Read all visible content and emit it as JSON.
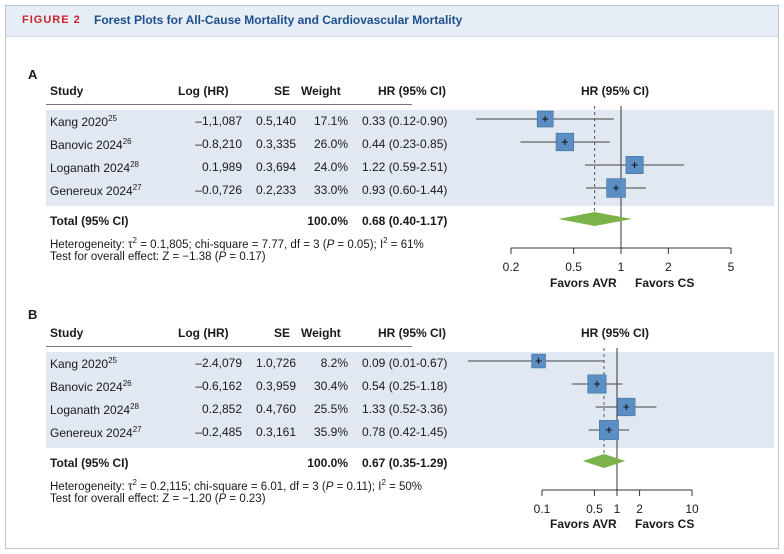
{
  "figure": {
    "number_label": "FIGURE 2",
    "title": "Forest Plots for All-Cause Mortality and Cardiovascular Mortality"
  },
  "columns": {
    "study": "Study",
    "loghr": "Log (HR)",
    "se": "SE",
    "weight": "Weight",
    "hr": "HR (95% CI)",
    "plot": "HR (95% CI)"
  },
  "panels": [
    {
      "label": "A",
      "total": {
        "label": "Total (95% CI)",
        "weight": "100.0%",
        "hr": "0.68 (0.40-1.17)"
      },
      "heterogeneity": {
        "pre": "Heterogeneity: τ",
        "exp": "2",
        "mid": " = 0.1,805; chi-square = 7.77, df = 3 (",
        "p": "P",
        "mid2": " = 0.05); I",
        "exp2": "2",
        "post": " = 61%"
      },
      "overall": {
        "pre": "Test for overall effect: Z = −1.38 (",
        "p": "P",
        "post": " = 0.17)"
      },
      "favors_left": "Favors AVR",
      "favors_right": "Favors CS",
      "rows": [
        {
          "name": "Kang 2020",
          "ref": "25",
          "loghr": "–1,1,087",
          "se": "0.5,140",
          "weight": "17.1%",
          "hr": "0.33 (0.12-0.90)"
        },
        {
          "name": "Banovic 2024",
          "ref": "26",
          "loghr": "–0.8,210",
          "se": "0.3,335",
          "weight": "26.0%",
          "hr": "0.44 (0.23-0.85)"
        },
        {
          "name": "Loganath 2024",
          "ref": "28",
          "loghr": "0.1,989",
          "se": "0.3,694",
          "weight": "24.0%",
          "hr": "1.22 (0.59-2.51)"
        },
        {
          "name": "Genereux 2024",
          "ref": "27",
          "loghr": "–0.0,726",
          "se": "0.2,233",
          "weight": "33.0%",
          "hr": "0.93 (0.60-1.44)"
        }
      ]
    },
    {
      "label": "B",
      "total": {
        "label": "Total (95% CI)",
        "weight": "100.0%",
        "hr": "0.67 (0.35-1.29)"
      },
      "heterogeneity": {
        "pre": "Heterogeneity: τ",
        "exp": "2",
        "mid": " = 0.2,115; chi-square = 6.01, df = 3 (",
        "p": "P",
        "mid2": " = 0.11); I",
        "exp2": "2",
        "post": " = 50%"
      },
      "overall": {
        "pre": "Test for overall effect: Z = −1.20 (",
        "p": "P",
        "post": " = 0.23)"
      },
      "favors_left": "Favors AVR",
      "favors_right": "Favors CS",
      "rows": [
        {
          "name": "Kang 2020",
          "ref": "25",
          "loghr": "–2.4,079",
          "se": "1.0,726",
          "weight": "8.2%",
          "hr": "0.09 (0.01-0.67)"
        },
        {
          "name": "Banovic 2024",
          "ref": "26",
          "loghr": "–0.6,162",
          "se": "0.3,959",
          "weight": "30.4%",
          "hr": "0.54 (0.25-1.18)"
        },
        {
          "name": "Loganath 2024",
          "ref": "28",
          "loghr": "0.2,852",
          "se": "0.4,760",
          "weight": "25.5%",
          "hr": "1.33 (0.52-3.36)"
        },
        {
          "name": "Genereux 2024",
          "ref": "27",
          "loghr": "–0.2,485",
          "se": "0.3,161",
          "weight": "35.9%",
          "hr": "0.78 (0.42-1.45)"
        }
      ]
    }
  ],
  "colors": {
    "box": "#5b8fc4",
    "box_border": "#3f6f9f",
    "diamond": "#7bb24a",
    "band": "#e1e8f1",
    "accent_red": "#c8252c",
    "accent_blue": "#1c4f8c"
  },
  "chart_data": [
    {
      "type": "forest",
      "scale": "log",
      "xticks": [
        0.2,
        0.5,
        1,
        2,
        5
      ],
      "xlim": [
        0.2,
        5
      ],
      "null_line": 1,
      "pooled_line": 0.68,
      "studies": [
        {
          "name": "Kang 2020",
          "hr": 0.33,
          "lo": 0.12,
          "hi": 0.9,
          "weight": 17.1
        },
        {
          "name": "Banovic 2024",
          "hr": 0.44,
          "lo": 0.23,
          "hi": 0.85,
          "weight": 26.0
        },
        {
          "name": "Loganath 2024",
          "hr": 1.22,
          "lo": 0.59,
          "hi": 2.51,
          "weight": 24.0
        },
        {
          "name": "Genereux 2024",
          "hr": 0.93,
          "lo": 0.6,
          "hi": 1.44,
          "weight": 33.0
        }
      ],
      "pooled": {
        "hr": 0.68,
        "lo": 0.4,
        "hi": 1.17
      }
    },
    {
      "type": "forest",
      "scale": "log",
      "xticks": [
        0.1,
        0.5,
        1,
        2,
        10
      ],
      "xlim": [
        0.1,
        10
      ],
      "null_line": 1,
      "pooled_line": 0.67,
      "studies": [
        {
          "name": "Kang 2020",
          "hr": 0.09,
          "lo": 0.01,
          "hi": 0.67,
          "weight": 8.2
        },
        {
          "name": "Banovic 2024",
          "hr": 0.54,
          "lo": 0.25,
          "hi": 1.18,
          "weight": 30.4
        },
        {
          "name": "Loganath 2024",
          "hr": 1.33,
          "lo": 0.52,
          "hi": 3.36,
          "weight": 25.5
        },
        {
          "name": "Genereux 2024",
          "hr": 0.78,
          "lo": 0.42,
          "hi": 1.45,
          "weight": 35.9
        }
      ],
      "pooled": {
        "hr": 0.67,
        "lo": 0.35,
        "hi": 1.29
      }
    }
  ]
}
